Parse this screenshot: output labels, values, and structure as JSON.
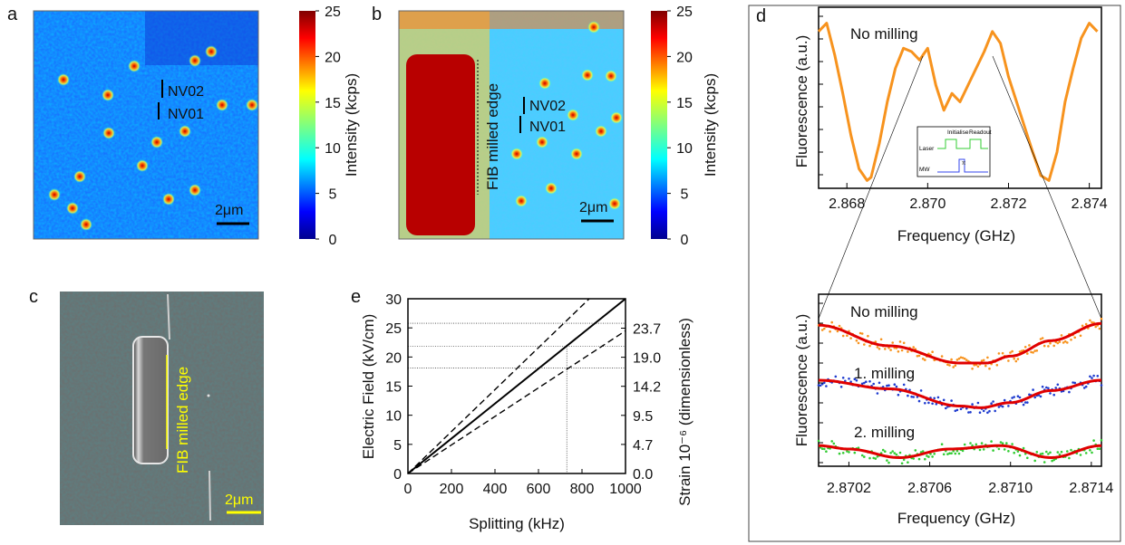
{
  "panels": {
    "a": {
      "label": "a",
      "nv_labels": [
        "NV02",
        "NV01"
      ],
      "scalebar": "2μm",
      "colorbar_label": "Intensity (kcps)",
      "colorbar_ticks": [
        "25",
        "20",
        "15",
        "10",
        "5",
        "0"
      ]
    },
    "b": {
      "label": "b",
      "nv_labels": [
        "NV02",
        "NV01"
      ],
      "edge_label": "FIB milled edge",
      "scalebar": "2μm",
      "colorbar_label": "Intensity (kcps)",
      "colorbar_ticks": [
        "25",
        "20",
        "15",
        "10",
        "5",
        "0"
      ]
    },
    "c": {
      "label": "c",
      "edge_label": "FIB milled edge",
      "scalebar": "2μm"
    },
    "d": {
      "label": "d",
      "top": {
        "annotation": "No milling",
        "ylabel": "Fluorescence (a.u.)",
        "xlabel": "Frequency (GHz)",
        "xticks": [
          "2.868",
          "2.870",
          "2.872",
          "2.874"
        ],
        "inset": {
          "initialise": "Initialise",
          "readout": "Readout",
          "laser": "Laser",
          "mw": "MW",
          "pi": "π"
        }
      },
      "bottom": {
        "annotations": [
          "No milling",
          "1. milling",
          "2. milling"
        ],
        "ylabel": "Fluorescence (a.u.)",
        "xlabel": "Frequency (GHz)",
        "xticks": [
          "2.8702",
          "2.8706",
          "2.8710",
          "2.8714"
        ]
      }
    },
    "e": {
      "label": "e",
      "xlabel": "Splitting (kHz)",
      "ylabel_left": "Electric Field (kV/cm)",
      "ylabel_right": "Strain 10⁻⁶ (dimensionless)",
      "xticks": [
        "0",
        "200",
        "400",
        "600",
        "800",
        "1000"
      ],
      "yticks_left": [
        "0",
        "5",
        "10",
        "15",
        "20",
        "25",
        "30"
      ],
      "yticks_right": [
        "0.0",
        "4.7",
        "9.5",
        "14.2",
        "19.0",
        "23.7"
      ]
    }
  },
  "chart_data": [
    {
      "type": "line",
      "panel": "d-top",
      "xlabel": "Frequency (GHz)",
      "ylabel": "Fluorescence (a.u.)",
      "xlim": [
        2.8673,
        2.8743
      ],
      "series": [
        {
          "color": "#f7931e",
          "x": [
            2.8673,
            2.8675,
            2.8677,
            2.8679,
            2.8681,
            2.8683,
            2.8685,
            2.8686,
            2.8688,
            2.869,
            2.8692,
            2.8694,
            2.8696,
            2.8698,
            2.87,
            2.8702,
            2.8704,
            2.8706,
            2.8708,
            2.871,
            2.8712,
            2.8714,
            2.8716,
            2.8718,
            2.872,
            2.8722,
            2.8724,
            2.8726,
            2.8728,
            2.873,
            2.8732,
            2.8734,
            2.8736,
            2.8738,
            2.874,
            2.8742
          ],
          "y": [
            0.92,
            0.97,
            0.78,
            0.55,
            0.3,
            0.1,
            0.03,
            0.05,
            0.25,
            0.5,
            0.7,
            0.82,
            0.8,
            0.75,
            0.82,
            0.6,
            0.45,
            0.55,
            0.5,
            0.6,
            0.7,
            0.8,
            0.92,
            0.85,
            0.65,
            0.5,
            0.35,
            0.2,
            0.06,
            0.03,
            0.2,
            0.5,
            0.7,
            0.88,
            0.97,
            0.92
          ]
        }
      ]
    },
    {
      "type": "scatter",
      "panel": "d-bottom",
      "xlabel": "Frequency (GHz)",
      "ylabel": "Fluorescence (a.u.)",
      "xlim": [
        2.87005,
        2.87145
      ],
      "series": [
        {
          "name": "No milling",
          "color": "#f7931e",
          "fit": [
            [
              2.87005,
              0.82
            ],
            [
              2.8704,
              0.7
            ],
            [
              2.87075,
              0.6
            ],
            [
              2.87088,
              0.6
            ],
            [
              2.871,
              0.64
            ],
            [
              2.8712,
              0.73
            ],
            [
              2.87145,
              0.83
            ]
          ]
        },
        {
          "name": "1. milling",
          "color": "#1f3ccf",
          "fit": [
            [
              2.87005,
              0.5
            ],
            [
              2.8704,
              0.45
            ],
            [
              2.87075,
              0.35
            ],
            [
              2.87085,
              0.34
            ],
            [
              2.871,
              0.37
            ],
            [
              2.8712,
              0.44
            ],
            [
              2.87145,
              0.5
            ]
          ]
        },
        {
          "name": "2. milling",
          "color": "#33cc33",
          "fit": [
            [
              2.87005,
              0.12
            ],
            [
              2.8702,
              0.1
            ],
            [
              2.87045,
              0.05
            ],
            [
              2.8707,
              0.1
            ],
            [
              2.87095,
              0.12
            ],
            [
              2.8712,
              0.05
            ],
            [
              2.87145,
              0.12
            ]
          ]
        }
      ]
    },
    {
      "type": "line",
      "panel": "e",
      "xlabel": "Splitting (kHz)",
      "ylabel": "Electric Field (kV/cm)",
      "xlim": [
        0,
        1000
      ],
      "ylim": [
        0,
        30
      ],
      "series": [
        {
          "style": "solid",
          "x": [
            0,
            1000
          ],
          "y": [
            0,
            30
          ]
        },
        {
          "style": "dashed",
          "x": [
            0,
            1000
          ],
          "y": [
            0,
            36
          ]
        },
        {
          "style": "dashed",
          "x": [
            0,
            1000
          ],
          "y": [
            0,
            24.5
          ]
        }
      ],
      "reference": {
        "x": 730,
        "y": [
          18.1,
          21.8,
          25.8
        ]
      }
    }
  ]
}
